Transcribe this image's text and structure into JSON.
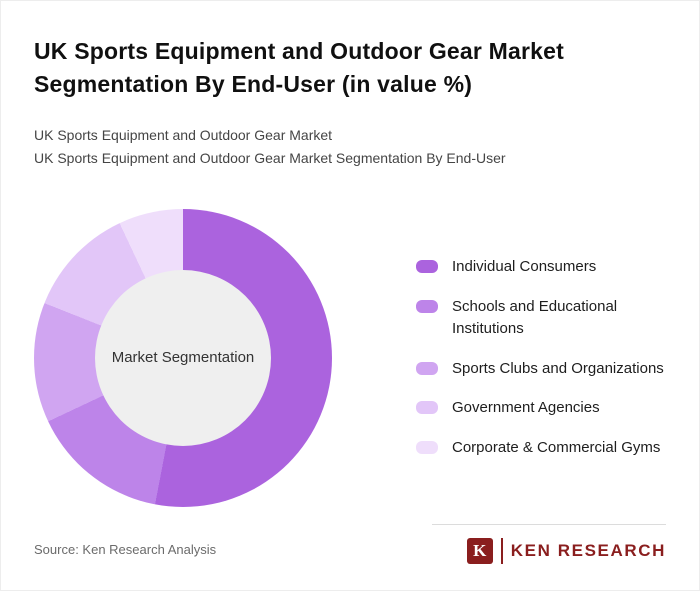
{
  "header": {
    "title": "UK Sports Equipment and Outdoor Gear Market Segmentation By End-User (in value %)",
    "subtitle_line1": "UK Sports Equipment and Outdoor Gear Market",
    "subtitle_line2": "UK Sports Equipment and Outdoor Gear Market Segmentation By End-User"
  },
  "chart_data": {
    "type": "pie",
    "variant": "donut",
    "title": "UK Sports Equipment and Outdoor Gear Market Segmentation By End-User (in value %)",
    "center_label": "Market Segmentation",
    "legend_position": "right",
    "start_angle_deg": 0,
    "hole_color": "#efefef",
    "segments": [
      {
        "label": "Individual Consumers",
        "value": 53,
        "color": "#ab63de"
      },
      {
        "label": "Schools and Educational Institutions",
        "value": 15,
        "color": "#bd84e9"
      },
      {
        "label": "Sports Clubs and Organizations",
        "value": 13,
        "color": "#d0a5f1"
      },
      {
        "label": "Government Agencies",
        "value": 12,
        "color": "#e2c6f8"
      },
      {
        "label": "Corporate & Commercial Gyms",
        "value": 7,
        "color": "#efdefb"
      }
    ]
  },
  "footer": {
    "source": "Source: Ken Research Analysis",
    "logo": {
      "letter": "K",
      "text": "KEN RESEARCH",
      "color": "#8a1e1e"
    }
  }
}
